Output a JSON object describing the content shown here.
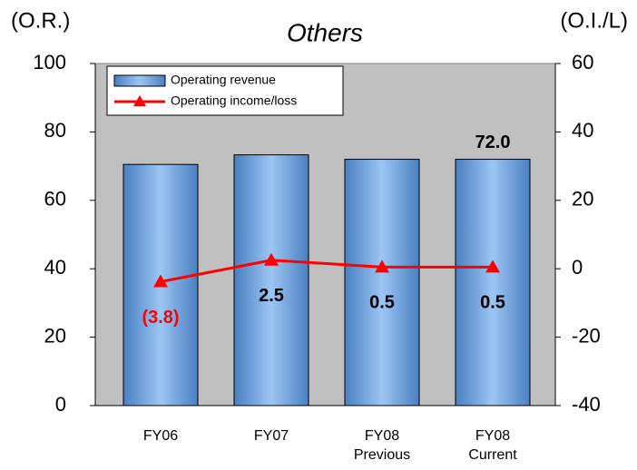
{
  "chart_data": {
    "type": "bar_line",
    "title": "Others",
    "ylabel": "(O.R.)",
    "y2label": "(O.I./L)",
    "categories": [
      "FY06",
      "FY07",
      "FY08\nPrevious",
      "FY08\nCurrent"
    ],
    "series": [
      {
        "name": "Operating revenue",
        "type": "bar",
        "color": "#7fb0e6",
        "values": [
          70.5,
          73.3,
          72.0,
          72.0
        ],
        "value_labels": [
          null,
          null,
          null,
          "72.0"
        ]
      },
      {
        "name": "Operating income/loss",
        "type": "line",
        "axis": "y2",
        "color": "#ff0000",
        "values": [
          -3.8,
          2.5,
          0.5,
          0.5
        ],
        "value_labels": [
          "(3.8)",
          "2.5",
          "0.5",
          "0.5"
        ]
      }
    ],
    "ylim": [
      0,
      100
    ],
    "yticks": [
      0,
      20,
      40,
      60,
      80,
      100
    ],
    "y2lim": [
      -40,
      60
    ],
    "y2ticks": [
      -40,
      -20,
      0,
      20,
      40,
      60
    ],
    "legend": "upper left"
  }
}
